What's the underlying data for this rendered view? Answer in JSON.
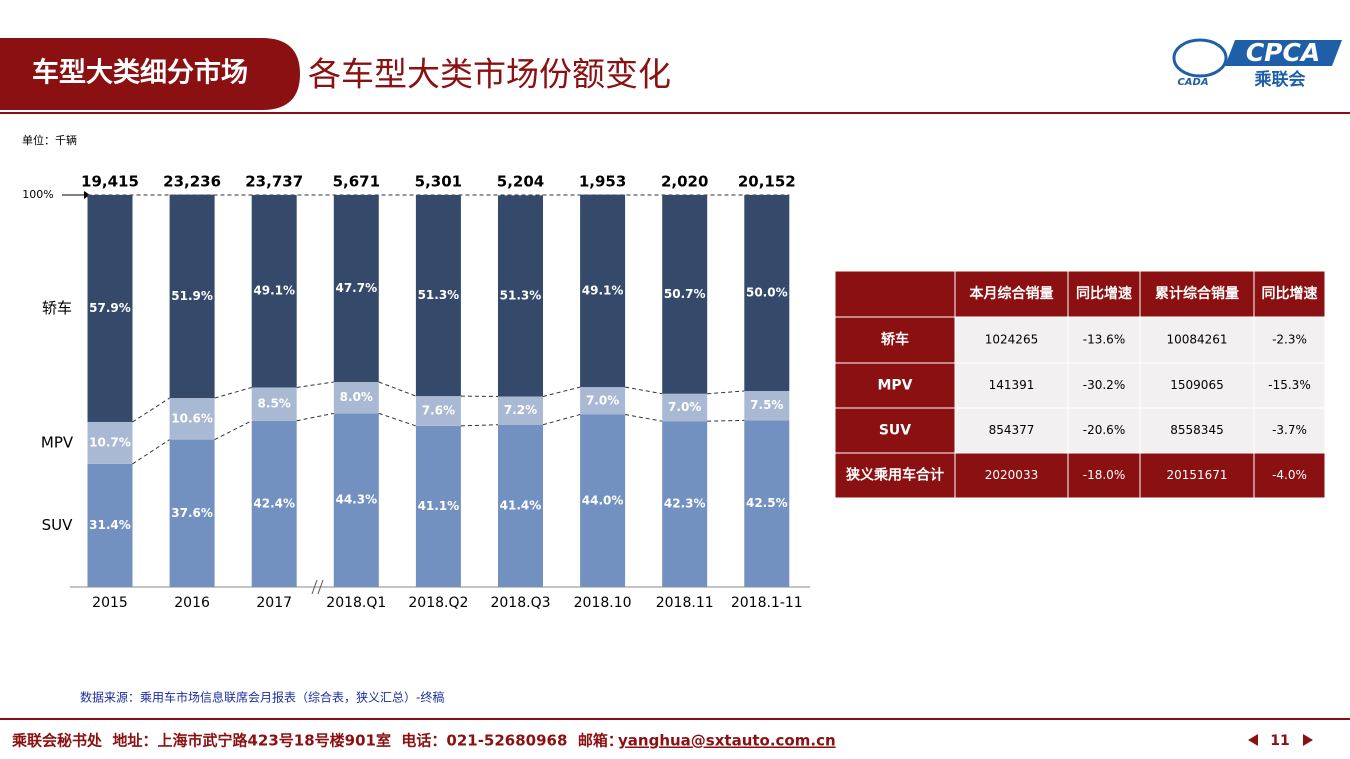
{
  "header": {
    "section": "车型大类细分市场",
    "title": "各车型大类市场份额变化",
    "logo_text": "CPCA",
    "logo_sub": "乘联会",
    "logo_mark": "CADA"
  },
  "chart_data": {
    "type": "bar",
    "stacked": true,
    "unit": "单位：千辆",
    "categories": [
      "2015",
      "2016",
      "2017",
      "2018.Q1",
      "2018.Q2",
      "2018.Q3",
      "2018.10",
      "2018.11",
      "2018.1-11"
    ],
    "totals": {
      "values": [
        19415,
        23236,
        23737,
        5671,
        5301,
        5204,
        1953,
        2020,
        20152
      ],
      "value_labels": [
        "19,415",
        "23,236",
        "23,737",
        "5,671",
        "5,301",
        "5,204",
        "1,953",
        "2,020",
        "20,152"
      ]
    },
    "series": [
      {
        "name": "SUV",
        "color": "#7391c0",
        "values": [
          31.4,
          37.6,
          42.4,
          44.3,
          41.1,
          41.4,
          44.0,
          42.3,
          42.5
        ],
        "value_labels": [
          "31.4%",
          "37.6%",
          "42.4%",
          "44.3%",
          "41.1%",
          "41.4%",
          "44.0%",
          "42.3%",
          "42.5%"
        ]
      },
      {
        "name": "MPV",
        "color": "#a9b9d4",
        "values": [
          10.7,
          10.6,
          8.5,
          8.0,
          7.6,
          7.2,
          7.0,
          7.0,
          7.5
        ],
        "value_labels": [
          "10.7%",
          "10.6%",
          "8.5%",
          "8.0%",
          "7.6%",
          "7.2%",
          "7.0%",
          "7.0%",
          "7.5%"
        ]
      },
      {
        "name": "轿车",
        "color": "#354a6a",
        "values": [
          57.9,
          51.9,
          49.1,
          47.7,
          51.3,
          51.3,
          49.1,
          50.7,
          50.0
        ],
        "value_labels": [
          "57.9%",
          "51.9%",
          "49.1%",
          "47.7%",
          "51.3%",
          "51.3%",
          "49.1%",
          "50.7%",
          "50.0%"
        ]
      }
    ],
    "ylim": [
      0,
      100
    ],
    "yticks": [
      {
        "value": 100,
        "label": "100%"
      }
    ]
  },
  "table": {
    "columns": [
      "本月综合销量",
      "同比增速",
      "累计综合销量",
      "同比增速"
    ],
    "rows": [
      {
        "label": "轿车",
        "cells": [
          "1024265",
          "-13.6%",
          "10084261",
          "-2.3%"
        ]
      },
      {
        "label": "MPV",
        "cells": [
          "141391",
          "-30.2%",
          "1509065",
          "-15.3%"
        ]
      },
      {
        "label": "SUV",
        "cells": [
          "854377",
          "-20.6%",
          "8558345",
          "-3.7%"
        ]
      },
      {
        "label": "狭义乘用车合计",
        "cells": [
          "2020033",
          "-18.0%",
          "20151671",
          "-4.0%"
        ]
      }
    ]
  },
  "source": "数据来源：乘用车市场信息联席会月报表（综合表，狭义汇总）-终稿",
  "footer": {
    "contact": "乘联会秘书处  地址：上海市武宁路423号18号楼901室  电话：021-52680968  邮箱：",
    "email": "yanghua@sxtauto.com.cn",
    "page": "11"
  }
}
